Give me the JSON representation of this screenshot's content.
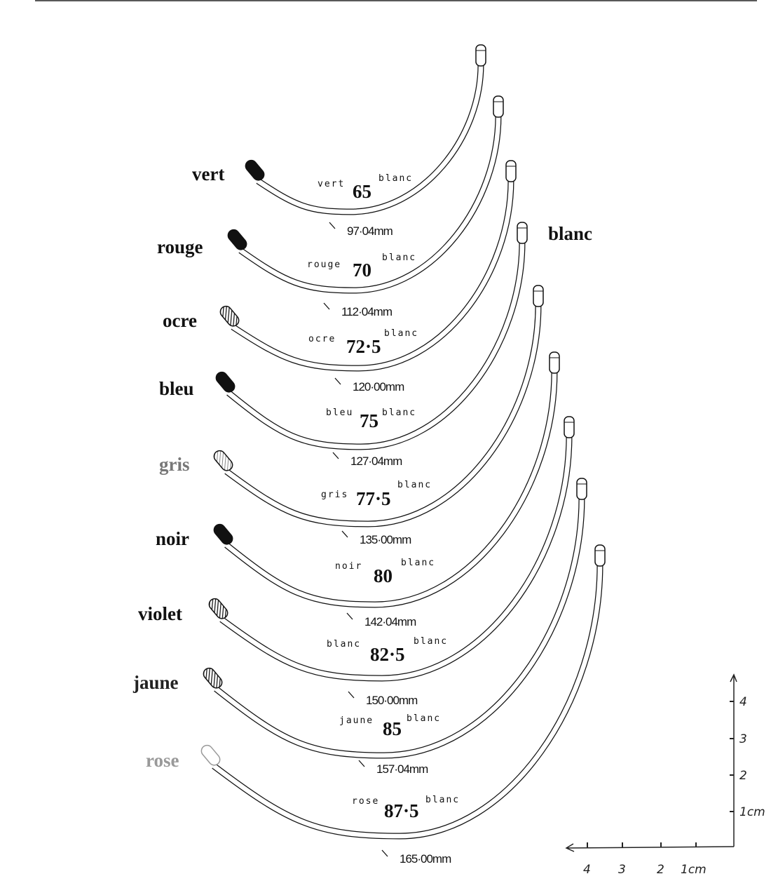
{
  "right_end_label": "blanc",
  "wires": [
    {
      "color_label": "vert",
      "label_color": "#111111",
      "cap_color": "#111111",
      "cap_style": "solid",
      "size_prefix": "vert",
      "size": "65",
      "size_suffix": "blanc",
      "length": "97·04mm"
    },
    {
      "color_label": "rouge",
      "label_color": "#111111",
      "cap_color": "#111111",
      "cap_style": "solid",
      "size_prefix": "rouge",
      "size": "70",
      "size_suffix": "blanc",
      "length": "112·04mm"
    },
    {
      "color_label": "ocre",
      "label_color": "#111111",
      "cap_color": "#333333",
      "cap_style": "hatched",
      "size_prefix": "ocre",
      "size": "72·5",
      "size_suffix": "blanc",
      "length": "120·00mm"
    },
    {
      "color_label": "bleu",
      "label_color": "#111111",
      "cap_color": "#111111",
      "cap_style": "solid",
      "size_prefix": "bleu",
      "size": "75",
      "size_suffix": "blanc",
      "length": "127·04mm"
    },
    {
      "color_label": "gris",
      "label_color": "#777777",
      "cap_color": "#999999",
      "cap_style": "hatched",
      "size_prefix": "gris",
      "size": "77·5",
      "size_suffix": "blanc",
      "length": "135·00mm"
    },
    {
      "color_label": "noir",
      "label_color": "#111111",
      "cap_color": "#111111",
      "cap_style": "solid",
      "size_prefix": "noir",
      "size": "80",
      "size_suffix": "blanc",
      "length": "142·04mm"
    },
    {
      "color_label": "violet",
      "label_color": "#111111",
      "cap_color": "#333333",
      "cap_style": "hatched",
      "size_prefix": "blanc",
      "size": "82·5",
      "size_suffix": "blanc",
      "length": "150·00mm"
    },
    {
      "color_label": "jaune",
      "label_color": "#222222",
      "cap_color": "#555555",
      "cap_style": "hatched",
      "size_prefix": "jaune",
      "size": "85",
      "size_suffix": "blanc",
      "length": "157·04mm"
    },
    {
      "color_label": "rose",
      "label_color": "#999999",
      "cap_color": "#dddddd",
      "cap_style": "outline",
      "size_prefix": "rose",
      "size": "87·5",
      "size_suffix": "blanc",
      "length": "165·00mm"
    }
  ],
  "scale": {
    "x_ticks": [
      "1cm",
      "2",
      "3",
      "4"
    ],
    "y_ticks": [
      "1cm",
      "2",
      "3",
      "4"
    ]
  }
}
